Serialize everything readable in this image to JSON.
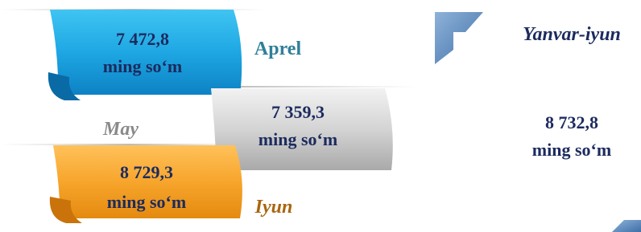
{
  "items": [
    {
      "value": "7 472,8",
      "unit": "ming so‘m",
      "month": "Aprel"
    },
    {
      "value": "7 359,3",
      "unit": "ming so‘m",
      "month": "May"
    },
    {
      "value": "8 729,3",
      "unit": "ming so‘m",
      "month": "Iyun"
    }
  ],
  "total": {
    "period": "Yanvar-iyun",
    "value": "8 732,8",
    "unit": "ming so‘m"
  }
}
